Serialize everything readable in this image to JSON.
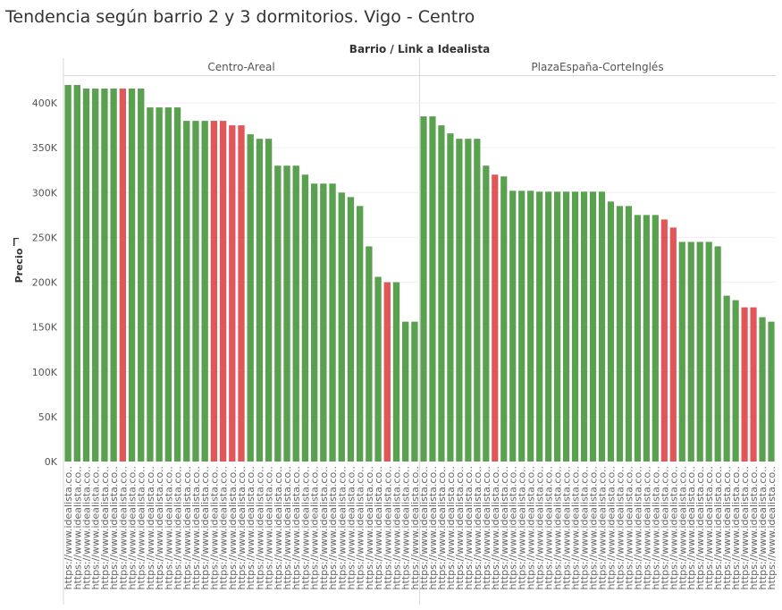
{
  "title": "Tendencia según barrio 2 y 3 dormitorios. Vigo - Centro",
  "chart_data": {
    "type": "bar",
    "column_header": "Barrio  /  Link a Idealista",
    "ylabel": "Precio",
    "ylim": [
      0,
      430000
    ],
    "yticks": [
      0,
      50000,
      100000,
      150000,
      200000,
      250000,
      300000,
      350000,
      400000
    ],
    "ytick_labels": [
      "0K",
      "50K",
      "100K",
      "150K",
      "200K",
      "250K",
      "300K",
      "350K",
      "400K"
    ],
    "category_label": "https://www.idealista.co..",
    "colors": {
      "green": "#59a14f",
      "red": "#e15759"
    },
    "panels": [
      {
        "name": "Centro-Areal",
        "values": [
          420000,
          420000,
          416000,
          416000,
          416000,
          416000,
          416000,
          416000,
          416000,
          395000,
          395000,
          395000,
          395000,
          380000,
          380000,
          380000,
          380000,
          380000,
          375000,
          375000,
          365000,
          360000,
          360000,
          330000,
          330000,
          330000,
          320000,
          310000,
          310000,
          310000,
          300000,
          295000,
          285000,
          240000,
          206000,
          200000,
          200000,
          156000,
          156000
        ],
        "colors": [
          "green",
          "green",
          "green",
          "green",
          "green",
          "green",
          "red",
          "green",
          "green",
          "green",
          "green",
          "green",
          "green",
          "green",
          "green",
          "green",
          "red",
          "red",
          "red",
          "red",
          "green",
          "green",
          "green",
          "green",
          "green",
          "green",
          "green",
          "green",
          "green",
          "green",
          "green",
          "green",
          "green",
          "green",
          "green",
          "red",
          "green",
          "green",
          "green"
        ]
      },
      {
        "name": "PlazaEspaña-CorteInglés",
        "values": [
          385000,
          385000,
          375000,
          366000,
          360000,
          360000,
          360000,
          330000,
          320000,
          318000,
          302000,
          302000,
          302000,
          301000,
          301000,
          301000,
          301000,
          301000,
          301000,
          301000,
          301000,
          290000,
          285000,
          285000,
          275000,
          275000,
          275000,
          270000,
          261000,
          245000,
          245000,
          245000,
          245000,
          240000,
          185000,
          180000,
          172000,
          172000,
          161000,
          156000
        ],
        "colors": [
          "green",
          "green",
          "green",
          "green",
          "green",
          "green",
          "green",
          "green",
          "red",
          "green",
          "green",
          "green",
          "green",
          "green",
          "green",
          "green",
          "green",
          "green",
          "green",
          "green",
          "green",
          "green",
          "green",
          "green",
          "green",
          "green",
          "green",
          "red",
          "red",
          "green",
          "green",
          "green",
          "green",
          "green",
          "green",
          "green",
          "red",
          "red",
          "green",
          "green"
        ]
      }
    ]
  }
}
